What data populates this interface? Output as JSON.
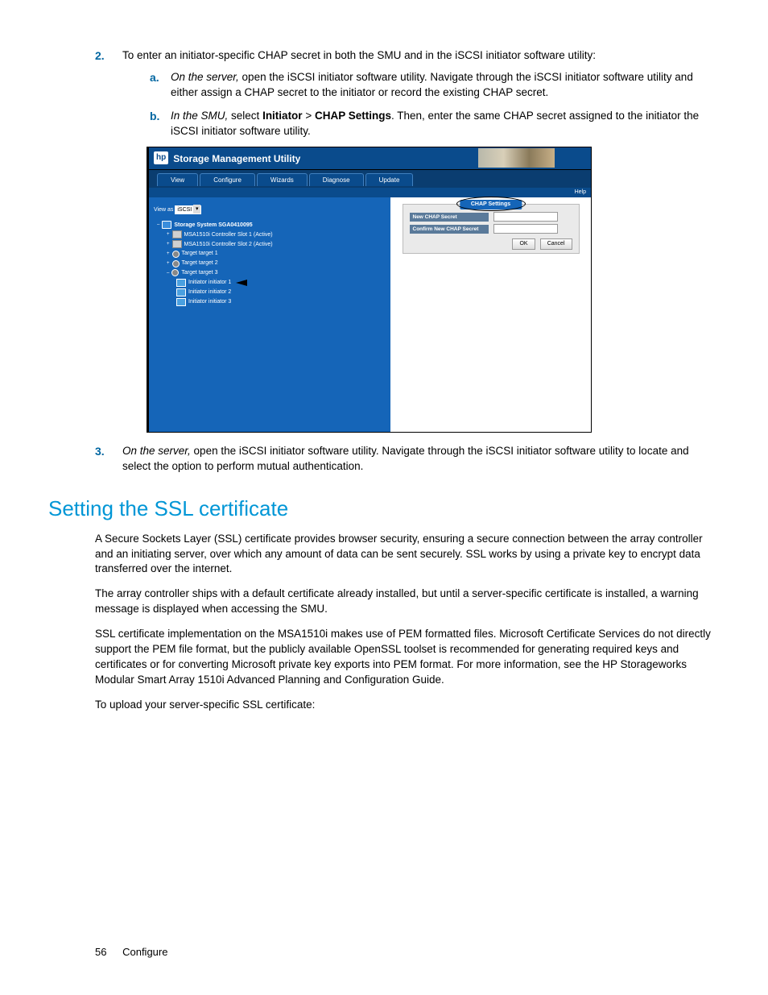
{
  "steps": {
    "2": {
      "marker": "2.",
      "text": "To enter an initiator-specific CHAP secret in both the SMU and in the iSCSI initiator software utility:",
      "a": {
        "marker": "a.",
        "lead_italic": "On the server,",
        "rest": " open the iSCSI initiator software utility. Navigate through the iSCSI initiator software utility and either assign a CHAP secret to the initiator or record the existing CHAP secret."
      },
      "b": {
        "marker": "b.",
        "lead_italic": "In the SMU,",
        "mid1": " select ",
        "bold1": "Initiator",
        "gt": " > ",
        "bold2": "CHAP Settings",
        "rest": ". Then, enter the same CHAP secret assigned to the initiator the iSCSI initiator software utility."
      }
    },
    "3": {
      "marker": "3.",
      "lead_italic": "On the server,",
      "rest": " open the iSCSI initiator software utility. Navigate through the iSCSI initiator software utility to locate and select the option to perform mutual authentication."
    }
  },
  "smu": {
    "badge": "hp",
    "title": "Storage Management Utility",
    "menu": [
      "View",
      "Configure",
      "Wizards",
      "Diagnose",
      "Update"
    ],
    "help": "Help",
    "view_as_label": "View as",
    "view_as_value": "iSCSI",
    "tree": {
      "system": "Storage System SGA0410095",
      "ctrl1": "MSA1510i Controller Slot 1 (Active)",
      "ctrl2": "MSA1510i Controller Slot 2 (Active)",
      "t1": "Target target 1",
      "t2": "Target target 2",
      "t3": "Target target 3",
      "i1": "Initiator initiator 1",
      "i2": "Initiator initiator 2",
      "i3": "Initiator initiator 3"
    },
    "panel": {
      "title": "CHAP Settings",
      "row1": "New CHAP Secret",
      "row2": "Confirm New CHAP Secret",
      "ok": "OK",
      "cancel": "Cancel"
    }
  },
  "section": {
    "heading": "Setting the SSL certificate",
    "p1": "A Secure Sockets Layer (SSL) certificate provides browser security, ensuring a secure connection between the array controller and an initiating server, over which any amount of data can be sent securely. SSL works by using a private key to encrypt data transferred over the internet.",
    "p2": "The array controller ships with a default certificate already installed, but until a server-specific certificate is installed, a warning message is displayed when accessing the SMU.",
    "p3": "SSL certificate implementation on the MSA1510i makes use of PEM formatted files. Microsoft Certificate Services do not directly support the PEM file format, but the publicly available OpenSSL toolset is recommended for generating required keys and certificates or for converting Microsoft private key exports into PEM format. For more information, see the HP Storageworks Modular Smart Array 1510i Advanced Planning and Configuration Guide.",
    "p4": "To upload your server-specific SSL certificate:"
  },
  "footer": {
    "page": "56",
    "chapter": "Configure"
  }
}
